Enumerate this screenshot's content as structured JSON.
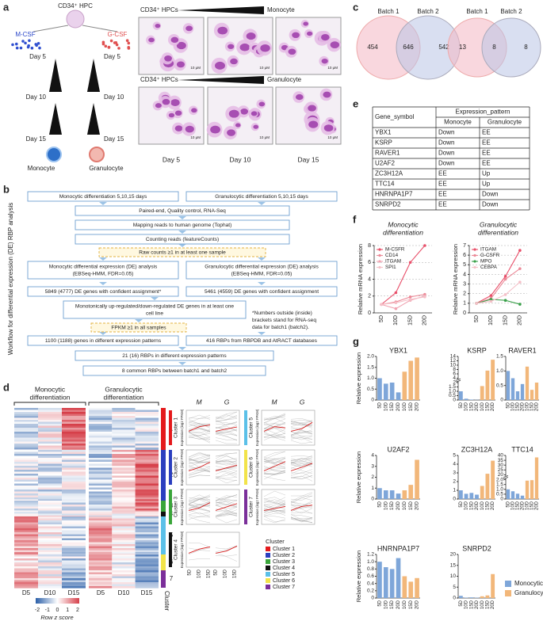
{
  "panel_labels": {
    "a": "a",
    "b": "b",
    "c": "c",
    "d": "d",
    "e": "e",
    "f": "f",
    "g": "g"
  },
  "a": {
    "hpc": "CD34⁺ HPC",
    "mcsf": "M-CSF",
    "gcsf": "G-CSF",
    "left_days": [
      "Day 5",
      "Day 10",
      "Day 15"
    ],
    "right_days": [
      "Day 5",
      "Day 10",
      "Day 15"
    ],
    "monocyte": "Monocyte",
    "granulocyte": "Granulocyte",
    "micro_top": {
      "start": "CD34⁺ HPCs",
      "end": "Monocyte"
    },
    "micro_bottom": {
      "start": "CD34⁺ HPCs",
      "end": "Granulocyte"
    },
    "micro_days": [
      "Day 5",
      "Day 10",
      "Day 15"
    ],
    "scale_bar": "10 μM"
  },
  "b": {
    "side_title": "Workflow for differential expression (DE) RBP analysis",
    "boxes": [
      {
        "lines": [
          "Monocytic differentiation 5,10,15 days"
        ]
      },
      {
        "lines": [
          "Granulocytic differentiation 5,10,15 days"
        ]
      },
      {
        "lines": [
          "Paired-end, Quality control, RNA-Seq"
        ]
      },
      {
        "lines": [
          "Mapping reads to human genome (Tophat)"
        ]
      },
      {
        "lines": [
          "Counting reads (featureCounts)"
        ]
      },
      {
        "lines": [
          "Raw counts ≥1 in at least one sample"
        ]
      },
      {
        "lines": [
          "Monocytic differential expression (DE) analysis",
          "(EBSeq-HMM, FDR=0.05)"
        ]
      },
      {
        "lines": [
          "Granulocytic differential expression (DE) analysis",
          "(EBSeq-HMM, FDR=0.05)"
        ]
      },
      {
        "lines": [
          "5849 (4777) DE genes with confident assignment*"
        ]
      },
      {
        "lines": [
          "5461 (4559) DE genes with confident assignment"
        ]
      },
      {
        "lines": [
          "Monotonically up-regulated/down-regulated DE genes in at least one",
          "cell line"
        ]
      },
      {
        "lines": [
          "FPKM ≥1 in all samples"
        ]
      },
      {
        "lines": [
          "1100 (1188) genes in different expression patterns"
        ]
      },
      {
        "lines": [
          "416 RBPs from RBPDB and AtRACT databases"
        ]
      },
      {
        "lines": [
          "21 (16) RBPs in different expression patterns"
        ]
      },
      {
        "lines": [
          "8 common RBPs between batch1 and batch2"
        ]
      }
    ],
    "note": [
      "*Numbers outside (inside)",
      "brackets stand for RNA-seq",
      "data for batch1 (batch2)."
    ]
  },
  "c": {
    "venns": [
      {
        "left_label": "Batch 1",
        "right_label": "Batch 2",
        "left_only": 454,
        "both": 646,
        "right_only": 542
      },
      {
        "left_label": "Batch 1",
        "right_label": "Batch 2",
        "left_only": 13,
        "both": 8,
        "right_only": 8
      }
    ]
  },
  "d": {
    "headers": [
      [
        "Monocytic",
        "differentiation"
      ],
      [
        "Granulocytic",
        "differentiation"
      ]
    ],
    "columns": [
      "D5",
      "D10",
      "D15",
      "D5",
      "D10",
      "D15"
    ],
    "cluster_title": "Cluster",
    "cluster_numbers": [
      1,
      2,
      3,
      4,
      5,
      6,
      7
    ],
    "scale": {
      "ticks": [
        -2,
        -1,
        0,
        1,
        2
      ],
      "label": "Row z score"
    },
    "cluster_plots": {
      "m": "M",
      "g": "G",
      "xticks": [
        "5D",
        "10D",
        "15D"
      ],
      "ylabel": "Expression (log2 FPKM)",
      "legend_title": "Cluster",
      "clusters": [
        {
          "name": "Cluster 1",
          "color": "#e41a1c"
        },
        {
          "name": "Cluster 2",
          "color": "#2b3fbf"
        },
        {
          "name": "Cluster 3",
          "color": "#3aa53a"
        },
        {
          "name": "Cluster 4",
          "color": "#111111"
        },
        {
          "name": "Cluster 5",
          "color": "#5bc0e8"
        },
        {
          "name": "Cluster 6",
          "color": "#f2e34a"
        },
        {
          "name": "Cluster 7",
          "color": "#7b2f9a"
        }
      ]
    }
  },
  "e": {
    "table": {
      "header": [
        "Gene_symbol",
        "Expression_pattern"
      ],
      "subheader": [
        "Monocyte",
        "Granulocyte"
      ],
      "rows": [
        [
          "YBX1",
          "Down",
          "EE"
        ],
        [
          "KSRP",
          "Down",
          "EE"
        ],
        [
          "RAVER1",
          "Down",
          "EE"
        ],
        [
          "U2AF2",
          "Down",
          "EE"
        ],
        [
          "ZC3H12A",
          "EE",
          "Up"
        ],
        [
          "TTC14",
          "EE",
          "Up"
        ],
        [
          "HNRNPA1P7",
          "EE",
          "Down"
        ],
        [
          "SNRPD2",
          "EE",
          "Down"
        ]
      ]
    }
  },
  "chart_data": [
    {
      "type": "line",
      "title": [
        "Monocytic",
        "differentiation"
      ],
      "ylabel": "Relative mRNA expression",
      "categories": [
        "5D",
        "10D",
        "15D",
        "20D"
      ],
      "ylim": [
        0,
        8
      ],
      "yticks": [
        0,
        2,
        4,
        6,
        8
      ],
      "grid": true,
      "legend": "upper left",
      "series": [
        {
          "name": "M-CSFR",
          "color": "#e8506a",
          "values": [
            1,
            2.4,
            6,
            8
          ]
        },
        {
          "name": "CD14",
          "color": "#ec8a98",
          "values": [
            1,
            1.3,
            1.9,
            2.2
          ]
        },
        {
          "name": "ITGAM",
          "color": "#f0a3b1",
          "values": [
            1,
            0.5,
            1.5,
            2
          ]
        },
        {
          "name": "SPI1",
          "color": "#f5c0c8",
          "values": [
            1,
            1.2,
            1.6,
            1.9
          ]
        }
      ]
    },
    {
      "type": "line",
      "title": [
        "Granulocytic",
        "differentiation"
      ],
      "ylabel": "Relative mRNA expression",
      "categories": [
        "5D",
        "10D",
        "15D",
        "20D"
      ],
      "ylim": [
        0,
        7
      ],
      "yticks": [
        0,
        1,
        2,
        3,
        4,
        5,
        6,
        7
      ],
      "grid": true,
      "legend": "upper left",
      "series": [
        {
          "name": "ITGAM",
          "color": "#e8506a",
          "values": [
            1,
            1.8,
            3.8,
            6.5
          ]
        },
        {
          "name": "G-CSFR",
          "color": "#ec8a98",
          "values": [
            1,
            1.5,
            3.5,
            4.6
          ]
        },
        {
          "name": "MPO",
          "color": "#3aa04a",
          "values": [
            1,
            1.4,
            1.3,
            0.9
          ]
        },
        {
          "name": "CEBPA",
          "color": "#f5c0c8",
          "values": [
            1,
            1.2,
            1.9,
            3.2
          ]
        }
      ]
    },
    {
      "type": "bar",
      "title": "YBX1",
      "ylabel": "Relative expression",
      "categories": [
        "5D",
        "10D",
        "15D",
        "20D",
        "10D",
        "15D",
        "20D"
      ],
      "ylim": [
        0,
        2
      ],
      "yticks": [
        0,
        0.5,
        {
          "value": 1,
          "label": "1.0"
        },
        1.5,
        {
          "value": 2,
          "label": "2.0"
        }
      ],
      "series": [
        {
          "color": "#7ea6d9",
          "values": [
            1.0,
            0.75,
            0.8,
            0.35,
            null,
            null,
            null
          ]
        },
        {
          "color": "#f2b77a",
          "values": [
            null,
            null,
            null,
            null,
            1.3,
            1.8,
            1.95
          ]
        }
      ]
    },
    {
      "type": "bar",
      "title": "KSRP",
      "categories": [
        "5D",
        "10D",
        "15D",
        "20D",
        "10D",
        "15D",
        "20D"
      ],
      "axis_break": true,
      "ylim": [
        0,
        14
      ],
      "yticks": [
        0,
        0.5,
        {
          "value": 1,
          "label": "1.0"
        },
        1.5,
        2,
        4,
        6,
        8,
        10,
        12,
        14
      ],
      "series": [
        {
          "color": "#7ea6d9",
          "values": [
            1.0,
            0.15,
            0.05,
            0.02,
            null,
            null,
            null
          ]
        },
        {
          "color": "#f2b77a",
          "values": [
            null,
            null,
            null,
            null,
            1.6,
            7.5,
            12.5
          ]
        }
      ]
    },
    {
      "type": "bar",
      "title": "RAVER1",
      "categories": [
        "5D",
        "10D",
        "15D",
        "20D",
        "10D",
        "15D",
        "20D"
      ],
      "ylim": [
        0,
        1.5
      ],
      "yticks": [
        0,
        0.5,
        {
          "value": 1,
          "label": "1.0"
        },
        1.5
      ],
      "series": [
        {
          "color": "#7ea6d9",
          "values": [
            1.0,
            0.75,
            0.3,
            0.55,
            null,
            null,
            null
          ]
        },
        {
          "color": "#f2b77a",
          "values": [
            null,
            null,
            null,
            null,
            1.15,
            0.35,
            0.6
          ]
        }
      ]
    },
    {
      "type": "bar",
      "title": "U2AF2",
      "ylabel": "Relative expression",
      "categories": [
        "5D",
        "10D",
        "15D",
        "20D",
        "10D",
        "15D",
        "20D"
      ],
      "ylim": [
        0,
        4
      ],
      "yticks": [
        0,
        1,
        2,
        3,
        4
      ],
      "series": [
        {
          "color": "#7ea6d9",
          "values": [
            1.0,
            0.8,
            0.8,
            0.5,
            null,
            null,
            null
          ]
        },
        {
          "color": "#f2b77a",
          "values": [
            null,
            null,
            null,
            null,
            0.8,
            1.3,
            3.6
          ]
        }
      ]
    },
    {
      "type": "bar",
      "title": "ZC3H12A",
      "categories": [
        "5D",
        "10D",
        "15D",
        "20D",
        "10D",
        "15D",
        "20D"
      ],
      "ylim": [
        0,
        5
      ],
      "yticks": [
        0,
        1,
        2,
        3,
        4,
        5
      ],
      "series": [
        {
          "color": "#7ea6d9",
          "values": [
            1.0,
            0.6,
            0.7,
            0.5,
            null,
            null,
            null
          ]
        },
        {
          "color": "#f2b77a",
          "values": [
            null,
            null,
            null,
            null,
            1.5,
            2.9,
            4.4
          ]
        }
      ]
    },
    {
      "type": "bar",
      "title": "TTC14",
      "categories": [
        "5D",
        "10D",
        "15D",
        "20D",
        "10D",
        "15D",
        "20D"
      ],
      "axis_break": true,
      "ylim": [
        0,
        40
      ],
      "yticks": [
        0,
        0.5,
        {
          "value": 1,
          "label": "1.0"
        },
        1.5,
        {
          "value": 2,
          "label": "2.0"
        },
        20,
        25,
        30,
        35,
        40
      ],
      "series": [
        {
          "color": "#7ea6d9",
          "values": [
            1.0,
            0.8,
            0.55,
            0.35,
            null,
            null,
            null
          ]
        },
        {
          "color": "#f2b77a",
          "values": [
            null,
            null,
            null,
            null,
            1.9,
            1.95,
            38
          ]
        }
      ]
    },
    {
      "type": "bar",
      "title": "HNRNPA1P7",
      "ylabel": "Relative expression",
      "categories": [
        "5D",
        "10D",
        "15D",
        "20D",
        "10D",
        "15D",
        "20D"
      ],
      "ylim": [
        0,
        1.2
      ],
      "yticks": [
        0,
        0.2,
        0.4,
        0.6,
        0.8,
        {
          "value": 1,
          "label": "1.0"
        },
        1.2
      ],
      "series": [
        {
          "color": "#7ea6d9",
          "values": [
            1.0,
            0.85,
            0.8,
            1.1,
            null,
            null,
            null
          ]
        },
        {
          "color": "#f2b77a",
          "values": [
            null,
            null,
            null,
            null,
            0.6,
            0.45,
            0.55
          ]
        }
      ]
    },
    {
      "type": "bar",
      "title": "SNRPD2",
      "categories": [
        "5D",
        "10D",
        "15D",
        "20D",
        "10D",
        "15D",
        "20D"
      ],
      "legend": "outside right",
      "ylim": [
        0,
        20
      ],
      "yticks": [
        0,
        5,
        10,
        15,
        20
      ],
      "series": [
        {
          "name": "Monocytic",
          "color": "#7ea6d9",
          "values": [
            1.0,
            0.2,
            0.3,
            0.15,
            null,
            null,
            null
          ]
        },
        {
          "name": "Granulocytic",
          "color": "#f2b77a",
          "values": [
            null,
            null,
            null,
            null,
            0.8,
            1.2,
            11
          ]
        }
      ]
    }
  ]
}
